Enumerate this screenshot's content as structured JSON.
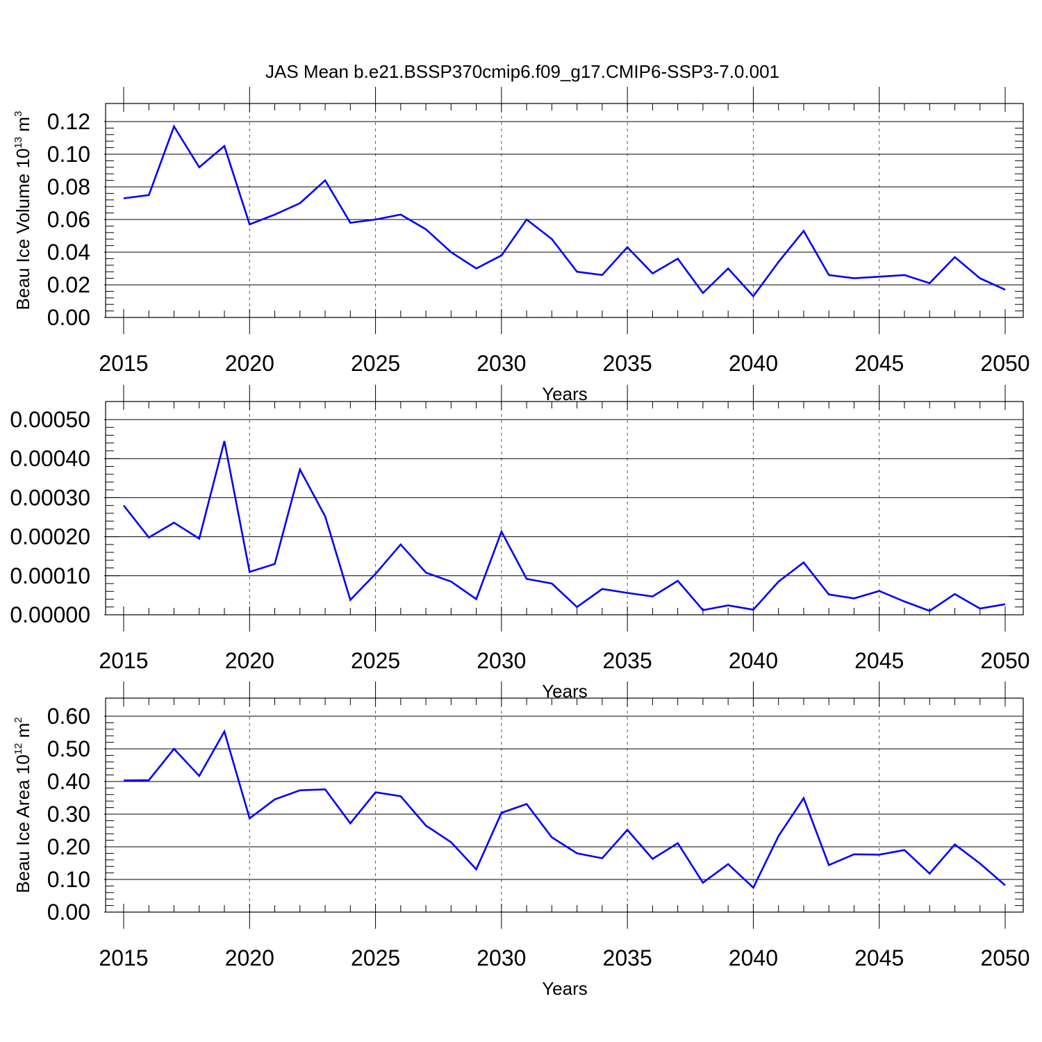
{
  "title": "JAS Mean b.e21.BSSP370cmip6.f09_g17.CMIP6-SSP3-7.0.001",
  "line_color": "#0000ff",
  "chart_data": [
    {
      "type": "line",
      "ylabel": {
        "text": "Beau Ice Volume 10",
        "sup": "13",
        "unit": " m",
        "unit_sup": "3"
      },
      "xlabel": "Years",
      "xlim": [
        2015,
        2050
      ],
      "ylim": [
        0.0,
        0.12
      ],
      "yticks": [
        "0.00",
        "0.02",
        "0.04",
        "0.06",
        "0.08",
        "0.10",
        "0.12"
      ],
      "xticks": [
        "2015",
        "2020",
        "2025",
        "2030",
        "2035",
        "2040",
        "2045",
        "2050"
      ],
      "x": [
        2015,
        2016,
        2017,
        2018,
        2019,
        2020,
        2021,
        2022,
        2023,
        2024,
        2025,
        2026,
        2027,
        2028,
        2029,
        2030,
        2031,
        2032,
        2033,
        2034,
        2035,
        2036,
        2037,
        2038,
        2039,
        2040,
        2041,
        2042,
        2043,
        2044,
        2045,
        2046,
        2047,
        2048,
        2049,
        2050
      ],
      "values": [
        0.073,
        0.075,
        0.117,
        0.092,
        0.105,
        0.057,
        0.063,
        0.07,
        0.084,
        0.058,
        0.06,
        0.063,
        0.054,
        0.04,
        0.03,
        0.038,
        0.06,
        0.048,
        0.028,
        0.026,
        0.043,
        0.027,
        0.036,
        0.015,
        0.03,
        0.013,
        0.034,
        0.053,
        0.026,
        0.024,
        0.025,
        0.026,
        0.021,
        0.037,
        0.024,
        0.017
      ]
    },
    {
      "type": "line",
      "ylabel": {
        "text": "",
        "sup": "",
        "unit": "",
        "unit_sup": ""
      },
      "xlabel": "Years",
      "xlim": [
        2015,
        2050
      ],
      "ylim": [
        0.0,
        0.0005
      ],
      "yticks": [
        "0.00000",
        "0.00010",
        "0.00020",
        "0.00030",
        "0.00040",
        "0.00050"
      ],
      "xticks": [
        "2015",
        "2020",
        "2025",
        "2030",
        "2035",
        "2040",
        "2045",
        "2050"
      ],
      "x": [
        2015,
        2016,
        2017,
        2018,
        2019,
        2020,
        2021,
        2022,
        2023,
        2024,
        2025,
        2026,
        2027,
        2028,
        2029,
        2030,
        2031,
        2032,
        2033,
        2034,
        2035,
        2036,
        2037,
        2038,
        2039,
        2040,
        2041,
        2042,
        2043,
        2044,
        2045,
        2046,
        2047,
        2048,
        2049,
        2050
      ],
      "values": [
        0.00028,
        0.000198,
        0.000236,
        0.000195,
        0.000445,
        0.00011,
        0.00013,
        0.000372,
        0.000252,
        3.8e-05,
        0.000105,
        0.00018,
        0.000108,
        8.5e-05,
        4e-05,
        0.000213,
        9.2e-05,
        8e-05,
        2e-05,
        6.6e-05,
        5.6e-05,
        4.7e-05,
        8.7e-05,
        1.2e-05,
        2.4e-05,
        1.3e-05,
        8.5e-05,
        0.000134,
        5.2e-05,
        4.2e-05,
        6.1e-05,
        3.4e-05,
        1e-05,
        5.3e-05,
        1.6e-05,
        2.7e-05
      ]
    },
    {
      "type": "line",
      "ylabel": {
        "text": "Beau Ice Area 10",
        "sup": "12",
        "unit": " m",
        "unit_sup": "2"
      },
      "xlabel": "Years",
      "xlim": [
        2015,
        2050
      ],
      "ylim": [
        0.0,
        0.6
      ],
      "yticks": [
        "0.00",
        "0.10",
        "0.20",
        "0.30",
        "0.40",
        "0.50",
        "0.60"
      ],
      "xticks": [
        "2015",
        "2020",
        "2025",
        "2030",
        "2035",
        "2040",
        "2045",
        "2050"
      ],
      "x": [
        2015,
        2016,
        2017,
        2018,
        2019,
        2020,
        2021,
        2022,
        2023,
        2024,
        2025,
        2026,
        2027,
        2028,
        2029,
        2030,
        2031,
        2032,
        2033,
        2034,
        2035,
        2036,
        2037,
        2038,
        2039,
        2040,
        2041,
        2042,
        2043,
        2044,
        2045,
        2046,
        2047,
        2048,
        2049,
        2050
      ],
      "values": [
        0.403,
        0.404,
        0.5,
        0.417,
        0.553,
        0.287,
        0.345,
        0.373,
        0.376,
        0.272,
        0.367,
        0.355,
        0.265,
        0.214,
        0.131,
        0.304,
        0.331,
        0.229,
        0.18,
        0.165,
        0.252,
        0.163,
        0.211,
        0.09,
        0.147,
        0.075,
        0.233,
        0.349,
        0.144,
        0.177,
        0.176,
        0.19,
        0.118,
        0.207,
        0.149,
        0.082
      ]
    }
  ]
}
